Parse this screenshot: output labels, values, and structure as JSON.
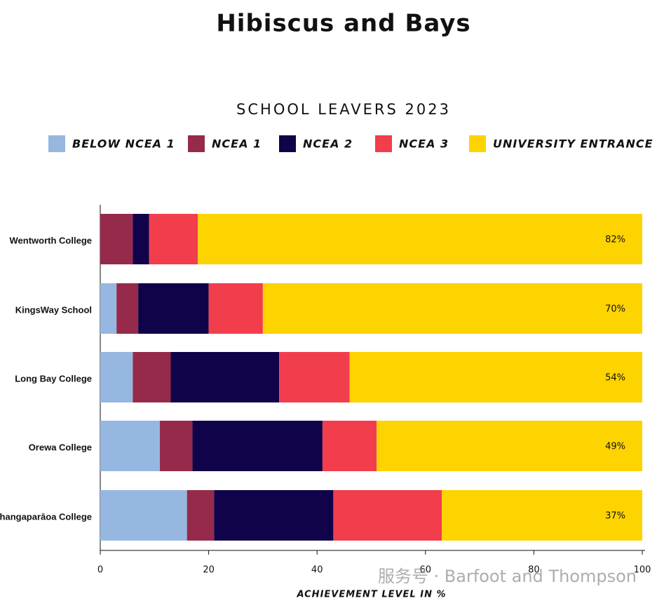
{
  "chart_data": {
    "type": "stacked-barh",
    "title": "Hibiscus and Bays",
    "subtitle": "SCHOOL LEAVERS 2023",
    "categories": [
      "Wentworth College",
      "KingsWay School",
      "Long Bay College",
      "Orewa College",
      "Whangaparāoa College"
    ],
    "series": [
      {
        "name": "BELOW NCEA 1",
        "color": "#96b7e0",
        "values": [
          0,
          3,
          6,
          11,
          16
        ]
      },
      {
        "name": "NCEA 1",
        "color": "#962a4b",
        "values": [
          6,
          4,
          7,
          6,
          5
        ]
      },
      {
        "name": "NCEA 2",
        "color": "#10034a",
        "values": [
          3,
          13,
          20,
          24,
          22
        ]
      },
      {
        "name": "NCEA 3",
        "color": "#f23d4c",
        "values": [
          9,
          10,
          13,
          10,
          20
        ]
      },
      {
        "name": "UNIVERSITY ENTRANCE",
        "color": "#fdd300",
        "values": [
          82,
          70,
          54,
          49,
          37
        ],
        "value_labels": [
          "82%",
          "70%",
          "54%",
          "49%",
          "37%"
        ]
      }
    ],
    "xlim": [
      0,
      100
    ],
    "xticks": [
      0,
      20,
      40,
      60,
      80,
      100
    ],
    "xlabel": "ACHIEVEMENT LEVEL IN %",
    "watermark": "服务号 · Barfoot and Thompson"
  }
}
